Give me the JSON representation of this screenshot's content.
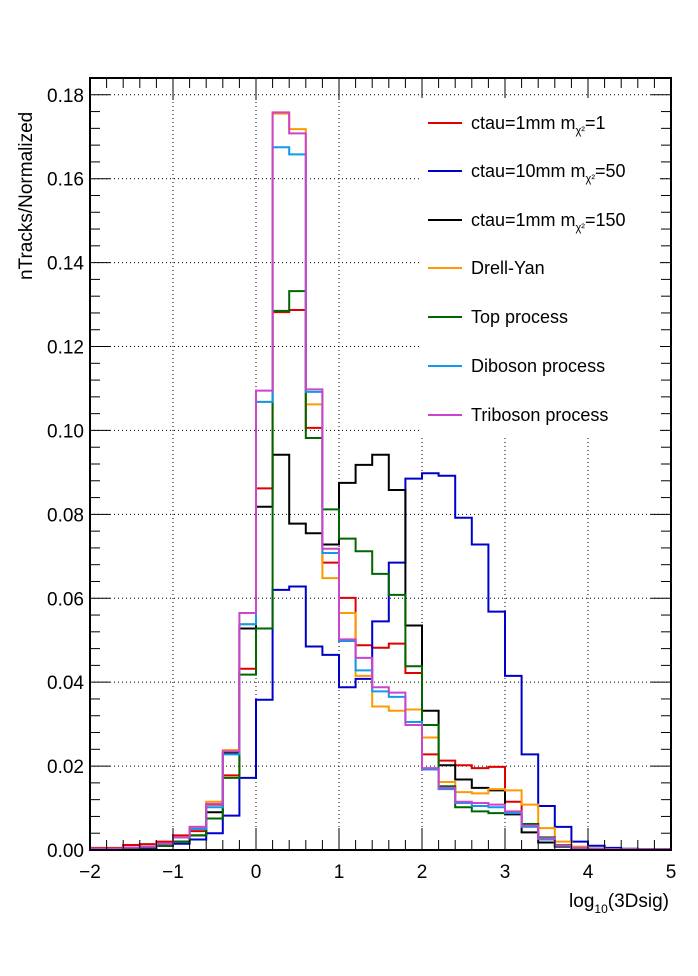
{
  "chart_data": {
    "type": "line",
    "subtype": "step-histogram",
    "xlabel_main": "log",
    "xlabel_sub": "10",
    "xlabel_rest": "(3Dsig)",
    "ylabel": "nTracks/Normalized",
    "xlim": [
      -2,
      5
    ],
    "ylim": [
      0,
      0.184
    ],
    "grid": true,
    "legend_position": "top-right",
    "x_ticks": [
      "−2",
      "−1",
      "0",
      "1",
      "2",
      "3",
      "4",
      "5"
    ],
    "y_ticks": [
      "0.00",
      "0.02",
      "0.04",
      "0.06",
      "0.08",
      "0.10",
      "0.12",
      "0.14",
      "0.16",
      "0.18"
    ],
    "bin_edges": [
      -2.0,
      -1.8,
      -1.6,
      -1.4,
      -1.2,
      -1.0,
      -0.8,
      -0.6,
      -0.4,
      -0.2,
      0.0,
      0.2,
      0.4,
      0.6,
      0.8,
      1.0,
      1.2,
      1.4,
      1.6,
      1.8,
      2.0,
      2.2,
      2.4,
      2.6,
      2.8,
      3.0,
      3.2,
      3.4,
      3.6,
      3.8,
      4.0,
      4.2,
      4.4,
      4.6,
      4.8,
      5.0
    ],
    "series": [
      {
        "name": "ctau=1mm m",
        "name_sub": "χ²",
        "name_tail": "=1",
        "color": "#e00000",
        "values": [
          0.0005,
          0.0005,
          0.0012,
          0.0014,
          0.002,
          0.0035,
          0.0045,
          0.0108,
          0.0178,
          0.0432,
          0.0862,
          0.1282,
          0.1287,
          0.1006,
          0.0685,
          0.0601,
          0.0488,
          0.0482,
          0.0492,
          0.0422,
          0.0228,
          0.0213,
          0.0202,
          0.0195,
          0.0198,
          0.0115,
          0.0062,
          0.0025,
          0.0012,
          0.0005,
          0.0003,
          0.0002,
          0.0002,
          0.0002,
          0.0002
        ]
      },
      {
        "name": "ctau=10mm m",
        "name_sub": "χ²",
        "name_tail": "=50",
        "color": "#0000cc",
        "values": [
          0.0002,
          0.0002,
          0.0004,
          0.0004,
          0.001,
          0.0015,
          0.0025,
          0.004,
          0.0082,
          0.0172,
          0.0358,
          0.062,
          0.0628,
          0.0485,
          0.0465,
          0.0388,
          0.0408,
          0.0545,
          0.0685,
          0.0885,
          0.0898,
          0.0892,
          0.0792,
          0.0728,
          0.0568,
          0.0415,
          0.0228,
          0.0105,
          0.0055,
          0.002,
          0.001,
          0.0005,
          0.0003,
          0.0002,
          0.0002
        ]
      },
      {
        "name": "ctau=1mm m",
        "name_sub": "χ²",
        "name_tail": "=150",
        "color": "#000000",
        "values": [
          0.0002,
          0.0002,
          0.0004,
          0.0006,
          0.001,
          0.002,
          0.0035,
          0.009,
          0.0232,
          0.0528,
          0.0818,
          0.0942,
          0.0778,
          0.0755,
          0.0728,
          0.0875,
          0.0918,
          0.0942,
          0.0858,
          0.0535,
          0.0332,
          0.0202,
          0.0168,
          0.0148,
          0.0142,
          0.0085,
          0.0042,
          0.0018,
          0.0008,
          0.0003,
          0.0002,
          0.0001,
          0.0001,
          0.0001,
          0.0001
        ]
      },
      {
        "name": "Drell-Yan",
        "name_sub": "",
        "name_tail": "",
        "color": "#ff9900",
        "values": [
          0.0003,
          0.0003,
          0.0006,
          0.0008,
          0.0015,
          0.003,
          0.0055,
          0.0115,
          0.0238,
          0.0538,
          0.1068,
          0.1755,
          0.1718,
          0.1062,
          0.0648,
          0.0565,
          0.0415,
          0.0342,
          0.0332,
          0.0335,
          0.0268,
          0.0162,
          0.0138,
          0.0135,
          0.0145,
          0.0142,
          0.0108,
          0.0052,
          0.002,
          0.0008,
          0.0004,
          0.0002,
          0.0002,
          0.0002,
          0.0002
        ]
      },
      {
        "name": "Top process",
        "name_sub": "",
        "name_tail": "",
        "color": "#006600",
        "values": [
          0.0002,
          0.0002,
          0.0004,
          0.0006,
          0.001,
          0.002,
          0.0035,
          0.0075,
          0.0172,
          0.0418,
          0.0528,
          0.1285,
          0.1332,
          0.0982,
          0.0812,
          0.0742,
          0.0712,
          0.0658,
          0.0608,
          0.0438,
          0.0298,
          0.0152,
          0.0102,
          0.0092,
          0.0088,
          0.009,
          0.0062,
          0.003,
          0.0012,
          0.0005,
          0.0002,
          0.0001,
          0.0001,
          0.0001,
          0.0001
        ]
      },
      {
        "name": "Diboson process",
        "name_sub": "",
        "name_tail": "",
        "color": "#1199ee",
        "values": [
          0.0003,
          0.0003,
          0.0006,
          0.0008,
          0.0015,
          0.003,
          0.005,
          0.0102,
          0.0228,
          0.0538,
          0.1068,
          0.1675,
          0.1658,
          0.1092,
          0.0708,
          0.0498,
          0.0428,
          0.0378,
          0.0365,
          0.0305,
          0.0192,
          0.0145,
          0.0112,
          0.0105,
          0.0102,
          0.0088,
          0.0055,
          0.0025,
          0.001,
          0.0005,
          0.0003,
          0.0002,
          0.0002,
          0.0002,
          0.0002
        ]
      },
      {
        "name": "Triboson process",
        "name_sub": "",
        "name_tail": "",
        "color": "#cc44cc",
        "values": [
          0.0003,
          0.0003,
          0.0006,
          0.0008,
          0.0015,
          0.003,
          0.0055,
          0.011,
          0.0235,
          0.0565,
          0.1095,
          0.1758,
          0.1708,
          0.1098,
          0.0718,
          0.0502,
          0.0458,
          0.0388,
          0.0375,
          0.0298,
          0.0195,
          0.0148,
          0.0115,
          0.0112,
          0.0108,
          0.0092,
          0.0058,
          0.0028,
          0.0011,
          0.0005,
          0.0003,
          0.0002,
          0.0002,
          0.0002,
          0.0002
        ]
      }
    ]
  }
}
